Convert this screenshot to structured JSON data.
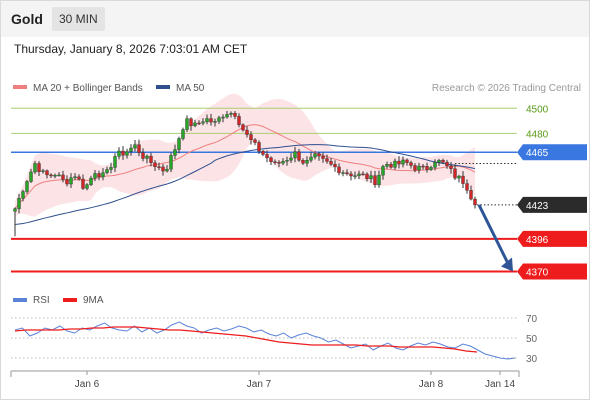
{
  "header": {
    "instrument": "Gold",
    "timeframe": "30 MIN",
    "datetime": "Thursday, January 8, 2026 7:03:01 AM CET"
  },
  "legend": {
    "ma20_label": "MA 20 + Bollinger Bands",
    "ma50_label": "MA 50",
    "copyright": "Research © 2026 Trading Central"
  },
  "colors": {
    "bullish": "#27a527",
    "bearish": "#d22626",
    "ma20": "#f08080",
    "ma50": "#2f4f8f",
    "band": "#fbe3e6",
    "level_green": "#a9cf6f",
    "pivot_blue": "#3a77e0",
    "support_red": "#ee1c1c",
    "rsi": "#5b84d8",
    "rsi_ma": "#ee1c1c",
    "arrow": "#2f5597",
    "current_tag": "#2b2b2b"
  },
  "chart_data": [
    {
      "type": "candlestick",
      "title": "",
      "x_ticks": [
        "Jan 6",
        "Jan 7",
        "Jan 8",
        "Jan 14"
      ],
      "ylim": [
        4360,
        4509
      ],
      "levels": [
        {
          "value": 4500,
          "label": "4500",
          "kind": "resistance"
        },
        {
          "value": 4480,
          "label": "4480",
          "kind": "resistance"
        },
        {
          "value": 4465,
          "label": "4465",
          "kind": "pivot"
        },
        {
          "value": 4396,
          "label": "4396",
          "kind": "support"
        },
        {
          "value": 4370,
          "label": "4370",
          "kind": "support"
        }
      ],
      "current": {
        "value": 4423,
        "label": "4423"
      },
      "projection": {
        "from": 4423,
        "to": 4370
      },
      "waypoints": [
        4420,
        4440,
        4456,
        4446,
        4448,
        4441,
        4447,
        4436,
        4450,
        4445,
        4462,
        4465,
        4470,
        4460,
        4455,
        4450,
        4468,
        4490,
        4486,
        4492,
        4488,
        4497,
        4496,
        4480,
        4470,
        4462,
        4455,
        4459,
        4464,
        4456,
        4461,
        4457,
        4453,
        4449,
        4447,
        4446,
        4442,
        4456,
        4455,
        4457,
        4453,
        4451,
        4459,
        4455,
        4446,
        4441,
        4423
      ],
      "series": [
        {
          "name": "MA 20 + Bollinger Bands",
          "window": 20
        },
        {
          "name": "MA 50",
          "window": 50
        }
      ]
    },
    {
      "type": "line",
      "title": "",
      "ylim": [
        25,
        75
      ],
      "yticks": [
        70,
        50,
        30
      ],
      "series": [
        {
          "name": "RSI",
          "values": [
            58,
            60,
            52,
            55,
            60,
            58,
            62,
            57,
            55,
            60,
            58,
            62,
            65,
            60,
            58,
            57,
            62,
            56,
            60,
            55,
            58,
            63,
            66,
            62,
            60,
            55,
            58,
            60,
            57,
            59,
            62,
            60,
            56,
            58,
            54,
            52,
            55,
            50,
            53,
            55,
            52,
            50,
            46,
            48,
            44,
            40,
            42,
            44,
            38,
            42,
            45,
            40,
            38,
            42,
            45,
            43,
            46,
            44,
            41,
            40,
            44,
            42,
            38,
            34,
            32,
            30,
            29,
            30
          ]
        },
        {
          "name": "9MA",
          "values": [
            57,
            58,
            58,
            58,
            58,
            59,
            59,
            60,
            60,
            61,
            61,
            61,
            60,
            59,
            58,
            58,
            57,
            56,
            55,
            54,
            53,
            52,
            50,
            48,
            46,
            45,
            44,
            43,
            43,
            43,
            43,
            43,
            42,
            42,
            42,
            41,
            41,
            41,
            41,
            40,
            39,
            37,
            36
          ]
        }
      ]
    }
  ]
}
